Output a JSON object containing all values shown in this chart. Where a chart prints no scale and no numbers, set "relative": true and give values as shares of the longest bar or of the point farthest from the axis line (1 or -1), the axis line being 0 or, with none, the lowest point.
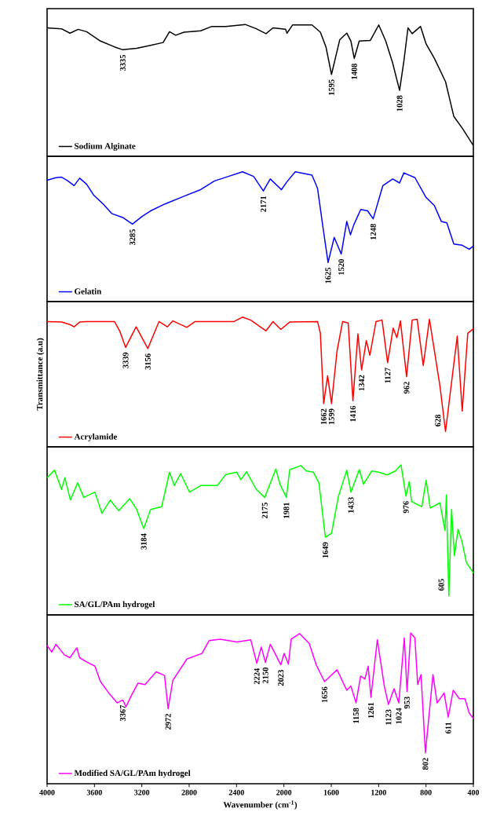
{
  "chart_data": [
    {
      "type": "line",
      "relative": true,
      "xlim": [
        4000,
        400
      ],
      "xticks": [
        4000,
        3600,
        3200,
        2800,
        2400,
        2000,
        1600,
        1200,
        800,
        400
      ],
      "tick_labels": false,
      "legend": "bottom left",
      "x": [
        4000,
        3878,
        3807,
        3737,
        3666,
        3549,
        3431,
        3361,
        3243,
        3126,
        3020,
        2966,
        2914,
        2844,
        2703,
        2609,
        2491,
        2327,
        2233,
        2151,
        2092,
        1986,
        1974,
        1927,
        1763,
        1692,
        1645,
        1598,
        1528,
        1469,
        1434,
        1406,
        1364,
        1270,
        1199,
        1140,
        1082,
        1023,
        987,
        952,
        917,
        846,
        799,
        729,
        635,
        600,
        565,
        494,
        447,
        400
      ],
      "series": [
        {
          "name": "Sodium Alginate",
          "color": "#000000",
          "values": [
            0.974,
            0.967,
            0.934,
            0.963,
            0.945,
            0.874,
            0.83,
            0.808,
            0.819,
            0.841,
            0.863,
            0.945,
            0.918,
            0.941,
            0.952,
            0.985,
            0.985,
            1.0,
            0.967,
            0.93,
            0.974,
            0.963,
            0.934,
            0.996,
            0.996,
            0.941,
            0.83,
            0.621,
            0.885,
            0.934,
            0.874,
            0.742,
            0.874,
            0.879,
            0.996,
            0.874,
            0.709,
            0.5,
            0.72,
            0.974,
            0.93,
            0.985,
            0.852,
            0.742,
            0.566,
            0.434,
            0.302,
            0.214,
            0.148,
            0.081
          ]
        }
      ],
      "annotations": [
        {
          "text": "3335",
          "x": 3361,
          "y": 0.808
        },
        {
          "text": "1595",
          "x": 1598,
          "y": 0.621
        },
        {
          "text": "1408",
          "x": 1406,
          "y": 0.742
        },
        {
          "text": "1028",
          "x": 1023,
          "y": 0.5
        }
      ]
    },
    {
      "type": "line",
      "relative": true,
      "xlim": [
        4000,
        400
      ],
      "xticks": [
        4000,
        3600,
        3200,
        2800,
        2400,
        2000,
        1600,
        1200,
        800,
        400
      ],
      "tick_labels": false,
      "legend": "bottom left",
      "x": [
        4000,
        3925,
        3878,
        3831,
        3772,
        3725,
        3666,
        3608,
        3525,
        3455,
        3361,
        3279,
        3196,
        3126,
        3008,
        2844,
        2703,
        2586,
        2468,
        2350,
        2256,
        2174,
        2115,
        2021,
        1974,
        1904,
        1763,
        1716,
        1669,
        1627,
        1575,
        1516,
        1469,
        1438,
        1410,
        1351,
        1293,
        1246,
        1164,
        1081,
        1023,
        987,
        893,
        799,
        729,
        671,
        624,
        565,
        494,
        435,
        400
      ],
      "series": [
        {
          "name": "Gelatin",
          "color": "#0000ff",
          "values": [
            0.935,
            0.955,
            0.959,
            0.935,
            0.894,
            0.951,
            0.904,
            0.822,
            0.751,
            0.679,
            0.648,
            0.597,
            0.658,
            0.699,
            0.751,
            0.812,
            0.863,
            0.93,
            0.965,
            1.0,
            0.965,
            0.853,
            0.945,
            0.863,
            0.924,
            1.0,
            0.975,
            0.873,
            0.566,
            0.301,
            0.495,
            0.366,
            0.618,
            0.515,
            0.591,
            0.71,
            0.699,
            0.638,
            0.894,
            0.945,
            0.914,
            0.992,
            0.955,
            0.802,
            0.74,
            0.618,
            0.607,
            0.444,
            0.434,
            0.403,
            0.427
          ]
        }
      ],
      "annotations": [
        {
          "text": "3285",
          "x": 3279,
          "y": 0.597
        },
        {
          "text": "2171",
          "x": 2174,
          "y": 0.853
        },
        {
          "text": "1625",
          "x": 1627,
          "y": 0.301
        },
        {
          "text": "1520",
          "x": 1516,
          "y": 0.366
        },
        {
          "text": "1248",
          "x": 1246,
          "y": 0.638
        }
      ]
    },
    {
      "type": "line",
      "relative": true,
      "xlim": [
        4000,
        400
      ],
      "xticks": [
        4000,
        3600,
        3200,
        2800,
        2400,
        2000,
        1600,
        1200,
        800,
        400
      ],
      "tick_labels": false,
      "legend": "bottom left",
      "ylabel": "Transmittance (a.u)",
      "x": [
        4000,
        3878,
        3807,
        3772,
        3725,
        3666,
        3431,
        3384,
        3337,
        3248,
        3149,
        3055,
        2985,
        2938,
        2820,
        2750,
        2421,
        2350,
        2280,
        2151,
        2092,
        2026,
        1951,
        1716,
        1692,
        1664,
        1631,
        1598,
        1551,
        1504,
        1457,
        1417,
        1375,
        1344,
        1304,
        1274,
        1222,
        1171,
        1124,
        1077,
        1046,
        1016,
        964,
        917,
        875,
        823,
        771,
        682,
        635,
        588,
        536,
        494,
        447,
        400
      ],
      "series": [
        {
          "name": "Acrylamide",
          "color": "#ff0000",
          "values": [
            0.966,
            0.962,
            0.943,
            0.925,
            0.962,
            0.966,
            0.966,
            0.887,
            0.767,
            0.925,
            0.758,
            0.966,
            0.925,
            0.971,
            0.921,
            0.966,
            0.966,
            1.0,
            0.977,
            0.894,
            0.966,
            0.905,
            0.962,
            0.966,
            0.876,
            0.333,
            0.548,
            0.333,
            0.74,
            0.966,
            0.955,
            0.355,
            0.871,
            0.593,
            0.819,
            0.706,
            0.966,
            0.977,
            0.649,
            0.916,
            0.842,
            0.971,
            0.541,
            0.977,
            0.984,
            0.627,
            0.984,
            0.468,
            0.118,
            0.468,
            0.853,
            0.276,
            0.876,
            0.91
          ]
        }
      ],
      "annotations": [
        {
          "text": "3339",
          "x": 3337,
          "y": 0.767
        },
        {
          "text": "3156",
          "x": 3149,
          "y": 0.758
        },
        {
          "text": "1662",
          "x": 1664,
          "y": 0.333
        },
        {
          "text": "1599",
          "x": 1598,
          "y": 0.333
        },
        {
          "text": "1416",
          "x": 1417,
          "y": 0.355
        },
        {
          "text": "1342",
          "x": 1344,
          "y": 0.593
        },
        {
          "text": "1127",
          "x": 1124,
          "y": 0.649
        },
        {
          "text": "962",
          "x": 964,
          "y": 0.541
        },
        {
          "text": "628",
          "x": 635,
          "y": 0.118
        }
      ]
    },
    {
      "type": "line",
      "relative": true,
      "xlim": [
        4000,
        400
      ],
      "xticks": [
        4000,
        3600,
        3200,
        2800,
        2400,
        2000,
        1600,
        1200,
        800,
        400
      ],
      "tick_labels": false,
      "legend": "bottom left",
      "x": [
        4000,
        3937,
        3878,
        3850,
        3803,
        3742,
        3690,
        3596,
        3537,
        3467,
        3396,
        3302,
        3243,
        3184,
        3126,
        3032,
        2966,
        2926,
        2872,
        2797,
        2703,
        2562,
        2491,
        2398,
        2363,
        2316,
        2233,
        2162,
        2068,
        2033,
        1979,
        1951,
        1857,
        1810,
        1751,
        1704,
        1650,
        1598,
        1539,
        1469,
        1434,
        1363,
        1328,
        1258,
        1199,
        1128,
        1058,
        1011,
        969,
        941,
        922,
        835,
        799,
        764,
        682,
        640,
        628,
        607,
        584,
        560,
        529,
        494,
        459,
        400
      ],
      "series": [
        {
          "name": "SA/GL/PAm hydrogel",
          "color": "#00ff00",
          "values": [
            0.915,
            0.965,
            0.836,
            0.915,
            0.765,
            0.88,
            0.783,
            0.818,
            0.677,
            0.765,
            0.694,
            0.774,
            0.703,
            0.576,
            0.703,
            0.721,
            0.951,
            0.862,
            0.942,
            0.818,
            0.862,
            0.862,
            0.936,
            0.951,
            0.901,
            0.954,
            0.836,
            0.783,
            0.972,
            0.871,
            0.783,
            0.968,
            0.995,
            0.959,
            0.951,
            0.88,
            0.518,
            0.544,
            0.792,
            0.965,
            0.818,
            0.968,
            0.871,
            0.959,
            0.951,
            0.933,
            0.959,
            1.0,
            0.792,
            0.889,
            0.756,
            0.721,
            0.898,
            0.712,
            0.747,
            0.562,
            0.8,
            0.127,
            0.703,
            0.394,
            0.571,
            0.482,
            0.35,
            0.279
          ]
        }
      ],
      "annotations": [
        {
          "text": "3184",
          "x": 3184,
          "y": 0.576
        },
        {
          "text": "2175",
          "x": 2162,
          "y": 0.783
        },
        {
          "text": "1981",
          "x": 1979,
          "y": 0.783
        },
        {
          "text": "1649",
          "x": 1650,
          "y": 0.518
        },
        {
          "text": "1433",
          "x": 1434,
          "y": 0.818
        },
        {
          "text": "976",
          "x": 969,
          "y": 0.792
        },
        {
          "text": "605",
          "x": 607,
          "y": 0.127
        }
      ]
    },
    {
      "type": "line",
      "relative": true,
      "xlim": [
        4000,
        400
      ],
      "xticks": [
        4000,
        3600,
        3200,
        2800,
        2400,
        2000,
        1600,
        1200,
        800,
        400
      ],
      "xlabel": "Wavenumber (cm$^{-1}$)",
      "legend": "bottom left",
      "x": [
        4000,
        3960,
        3925,
        3854,
        3807,
        3749,
        3725,
        3666,
        3596,
        3549,
        3479,
        3408,
        3361,
        3333,
        3290,
        3232,
        3173,
        3079,
        3008,
        2978,
        2938,
        2820,
        2691,
        2632,
        2538,
        2397,
        2280,
        2229,
        2191,
        2156,
        2115,
        2026,
        1998,
        1962,
        1939,
        1868,
        1786,
        1727,
        1657,
        1551,
        1469,
        1434,
        1391,
        1352,
        1316,
        1288,
        1265,
        1211,
        1152,
        1117,
        1070,
        1030,
        983,
        960,
        929,
        894,
        870,
        842,
        805,
        741,
        706,
        647,
        612,
        570,
        518,
        471,
        435,
        400
      ],
      "series": [
        {
          "name": "Modified SA/GL/PAm hydrogel",
          "color": "#ff00ff",
          "values": [
            0.917,
            0.874,
            0.925,
            0.855,
            0.836,
            0.902,
            0.836,
            0.808,
            0.78,
            0.677,
            0.602,
            0.536,
            0.555,
            0.511,
            0.583,
            0.667,
            0.658,
            0.742,
            0.718,
            0.498,
            0.686,
            0.827,
            0.865,
            0.949,
            0.959,
            0.94,
            0.955,
            0.799,
            0.906,
            0.805,
            0.925,
            0.789,
            0.865,
            0.793,
            0.959,
            0.996,
            0.93,
            0.789,
            0.677,
            0.756,
            0.62,
            0.648,
            0.536,
            0.714,
            0.695,
            0.78,
            0.573,
            0.955,
            0.648,
            0.526,
            0.63,
            0.536,
            0.968,
            0.611,
            1.0,
            0.968,
            0.658,
            0.724,
            0.205,
            0.724,
            0.536,
            0.602,
            0.442,
            0.62,
            0.564,
            0.564,
            0.47,
            0.432
          ]
        }
      ],
      "annotations": [
        {
          "text": "3367",
          "x": 3361,
          "y": 0.555
        },
        {
          "text": "2972",
          "x": 2978,
          "y": 0.498
        },
        {
          "text": "2224",
          "x": 2229,
          "y": 0.799
        },
        {
          "text": "2150",
          "x": 2156,
          "y": 0.805
        },
        {
          "text": "2023",
          "x": 2026,
          "y": 0.789
        },
        {
          "text": "1656",
          "x": 1657,
          "y": 0.677
        },
        {
          "text": "1158",
          "x": 1391,
          "y": 0.536
        },
        {
          "text": "1261",
          "x": 1265,
          "y": 0.573
        },
        {
          "text": "1123",
          "x": 1117,
          "y": 0.526
        },
        {
          "text": "1024",
          "x": 1030,
          "y": 0.536
        },
        {
          "text": "953",
          "x": 960,
          "y": 0.611
        },
        {
          "text": "802",
          "x": 805,
          "y": 0.205
        },
        {
          "text": "611",
          "x": 612,
          "y": 0.442
        }
      ]
    }
  ]
}
